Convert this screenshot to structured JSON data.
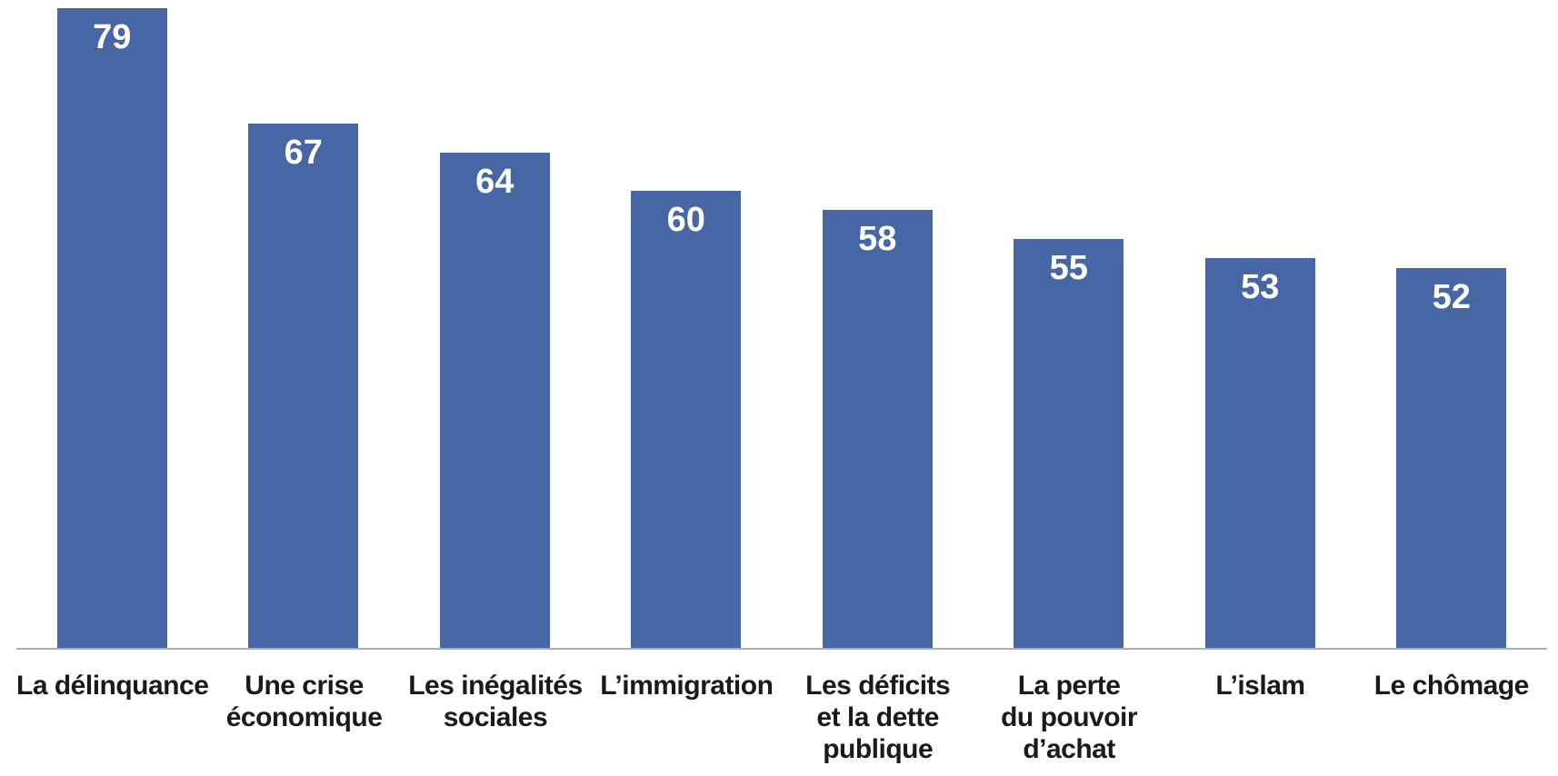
{
  "chart_data": {
    "type": "bar",
    "title": "",
    "xlabel": "",
    "ylabel": "",
    "categories": [
      "La délinquance",
      "Une crise économique",
      "Les inégalités sociales",
      "L’immigration",
      "Les déficits et la dette publique",
      "La perte du pouvoir d’achat",
      "L’islam",
      "Le chômage"
    ],
    "category_lines": [
      [
        "La délinquance"
      ],
      [
        "Une crise",
        "économique"
      ],
      [
        "Les inégalités",
        "sociales"
      ],
      [
        "L’immigration"
      ],
      [
        "Les déficits",
        "et la dette",
        "publique"
      ],
      [
        "La perte",
        "du pouvoir",
        "d’achat"
      ],
      [
        "L’islam"
      ],
      [
        "Le chômage"
      ]
    ],
    "values": [
      79,
      67,
      64,
      60,
      58,
      55,
      53,
      52
    ],
    "value_labels_position": "inside-top",
    "legend": "none",
    "grid": false,
    "ylim_visual": [
      12.5,
      79
    ],
    "colors": {
      "bar": "#4767A4",
      "value_text": "#FFFFFF",
      "category_text": "#1A1A1A",
      "axis_line": "#ADADAD",
      "background": "#FFFFFF"
    }
  }
}
